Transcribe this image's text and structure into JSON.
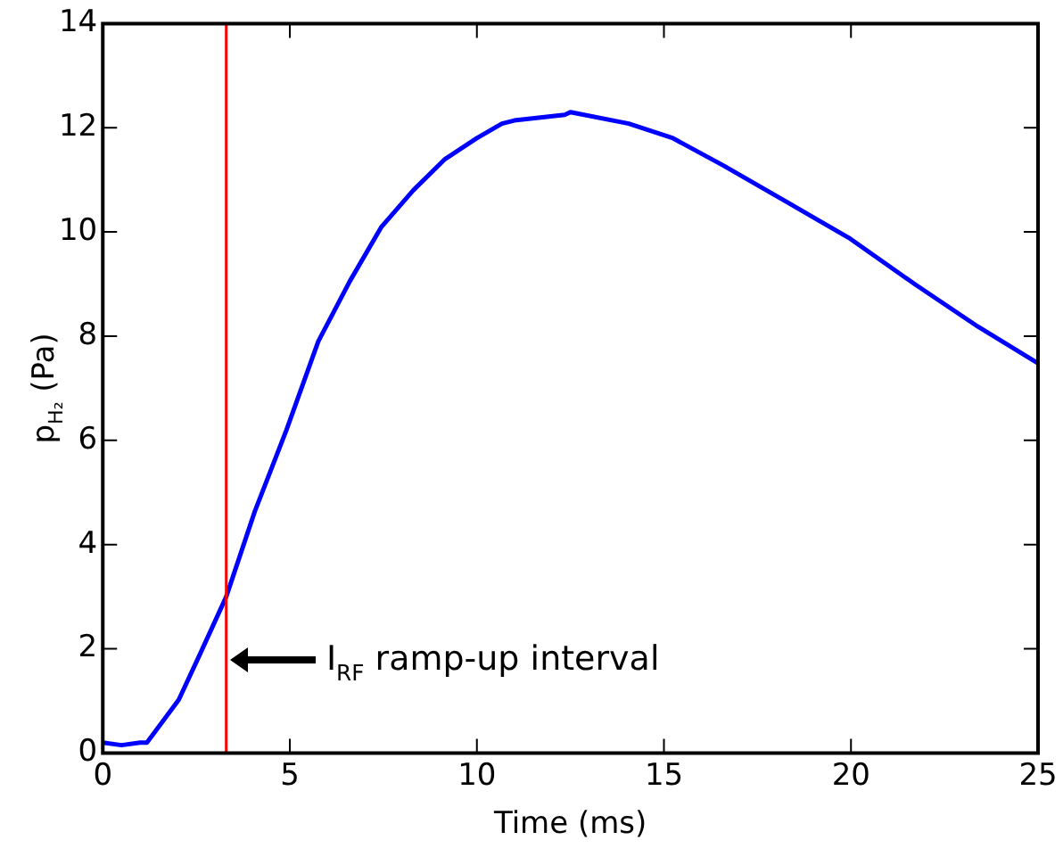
{
  "chart_data": {
    "type": "line",
    "xlabel": "Time (ms)",
    "ylabel": "p$_{H₂}$ (Pa)",
    "x": [
      0,
      0.5,
      1.0,
      1.18,
      2.03,
      2.6,
      3.3,
      4.06,
      4.91,
      5.76,
      6.6,
      7.45,
      8.3,
      9.15,
      10.0,
      10.67,
      11.0,
      12.35,
      12.5,
      14.06,
      15.24,
      16.6,
      18.3,
      19.98,
      21.7,
      23.4,
      25
    ],
    "series": [
      {
        "color": "#0000ff",
        "values": [
          0.2,
          0.15,
          0.2,
          0.2,
          1.02,
          1.9,
          3.0,
          4.63,
          6.2,
          7.9,
          9.05,
          10.1,
          10.8,
          11.4,
          11.8,
          12.08,
          12.14,
          12.25,
          12.3,
          12.08,
          11.8,
          11.27,
          10.57,
          9.87,
          9.0,
          8.18,
          7.48
        ]
      }
    ],
    "xlim": [
      0,
      25
    ],
    "xticks": [
      0,
      5,
      10,
      15,
      20,
      25
    ],
    "ylim": [
      0,
      14
    ],
    "yticks": [
      0,
      2,
      4,
      6,
      8,
      10,
      12,
      14
    ],
    "grid": false,
    "legend": false,
    "marker": "none",
    "line_style": "solid",
    "ref_lines": [
      {
        "axis": "x",
        "value": 3.3,
        "color": "#ff0000"
      }
    ],
    "annotations": [
      {
        "text": "I$_{RF}$ ramp-up interval",
        "x": 3.4,
        "y": 1.8
      }
    ]
  }
}
